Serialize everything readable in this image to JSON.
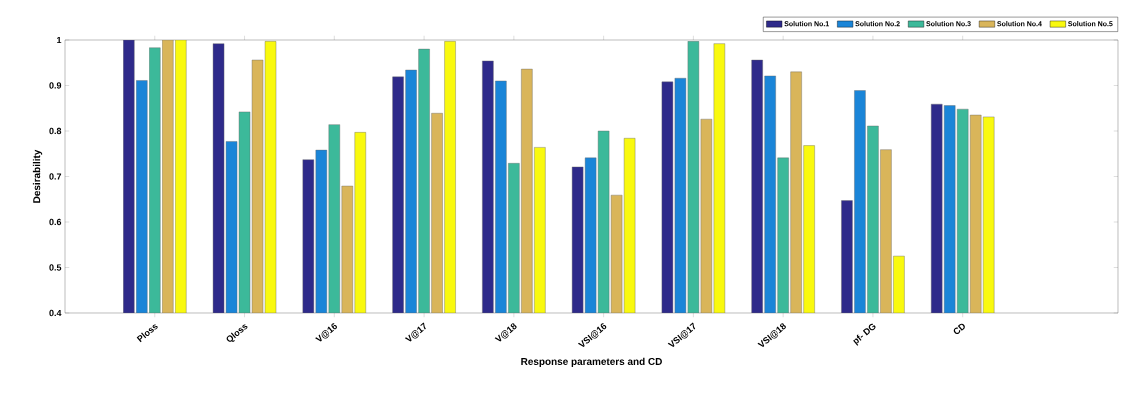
{
  "chart_data": {
    "type": "bar",
    "xlabel": "Response parameters and CD",
    "ylabel": "Desirability",
    "categories": [
      "Ploss",
      "Qloss",
      "V@16",
      "V@17",
      "V@18",
      "VSI@16",
      "VSI@17",
      "VSI@18",
      "pf- DG",
      "CD"
    ],
    "series": [
      {
        "name": "Solution No.1",
        "color": "#2e2a8a",
        "values": [
          1.0,
          0.992,
          0.737,
          0.919,
          0.954,
          0.721,
          0.908,
          0.956,
          0.647,
          0.859
        ]
      },
      {
        "name": "Solution No.2",
        "color": "#1a85d8",
        "values": [
          0.911,
          0.777,
          0.758,
          0.934,
          0.91,
          0.741,
          0.916,
          0.921,
          0.889,
          0.856
        ]
      },
      {
        "name": "Solution No.3",
        "color": "#3cb99a",
        "values": [
          0.983,
          0.842,
          0.814,
          0.98,
          0.729,
          0.8,
          0.997,
          0.741,
          0.811,
          0.848
        ]
      },
      {
        "name": "Solution No.4",
        "color": "#d9b55a",
        "values": [
          1.0,
          0.956,
          0.679,
          0.839,
          0.936,
          0.659,
          0.826,
          0.93,
          0.759,
          0.835
        ]
      },
      {
        "name": "Solution No.5",
        "color": "#f9f90e",
        "values": [
          1.0,
          0.997,
          0.797,
          0.997,
          0.764,
          0.784,
          0.992,
          0.768,
          0.525,
          0.831
        ]
      }
    ],
    "ylim": [
      0.4,
      1.0
    ],
    "yticks": [
      0.4,
      0.5,
      0.6,
      0.7,
      0.8,
      0.9,
      1
    ],
    "grid": false,
    "legend": "top right"
  }
}
